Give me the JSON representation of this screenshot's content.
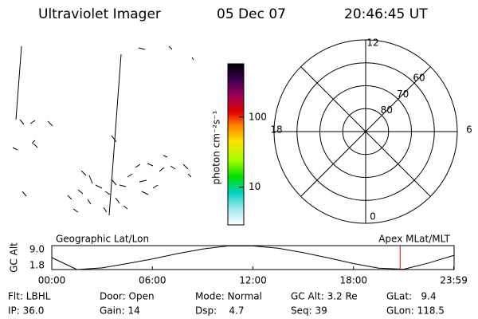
{
  "header": {
    "title": "Ultraviolet Imager",
    "date": "05 Dec 07",
    "time": "20:46:45 UT"
  },
  "colorbar": {
    "label": "photon cm⁻²s⁻¹",
    "log": true,
    "lim": [
      2.9,
      575
    ],
    "ticks": [
      10,
      100
    ]
  },
  "polar": {
    "mlt_ticks": [
      12,
      18,
      6,
      0
    ],
    "lat_lim": [
      50,
      90
    ],
    "lat_rings": [
      60,
      70,
      80
    ]
  },
  "chart_data": {
    "type": "line",
    "ylabel": "GC Alt",
    "left_label": "Geographic Lat/Lon",
    "right_label": "Apex MLat/MLT",
    "x": [
      0,
      1.5,
      3,
      4.5,
      6,
      7.5,
      9,
      10.5,
      12,
      13.5,
      15,
      16.5,
      18,
      19.5,
      21,
      22.5,
      24
    ],
    "values": [
      5.4,
      1.8,
      2.3,
      3.6,
      5.0,
      6.6,
      8.0,
      8.9,
      8.9,
      8.2,
      6.9,
      5.3,
      3.6,
      2.2,
      1.9,
      3.8,
      6.1
    ],
    "color": "#000000",
    "xlim": [
      0,
      24
    ],
    "xticks": [
      {
        "value": 0,
        "label": "00:00"
      },
      {
        "value": 6,
        "label": "06:00"
      },
      {
        "value": 12,
        "label": "12:00"
      },
      {
        "value": 18,
        "label": "18:00"
      },
      {
        "value": 23.98,
        "label": "23:59"
      }
    ],
    "ylim": [
      1.8,
      9
    ],
    "yticks": [
      {
        "value": 9,
        "label": "9.0"
      },
      1.8
    ],
    "marker_x": 20.78,
    "marker_color": "#cc0000"
  },
  "info": {
    "rows": [
      [
        "Flt: LBHL",
        "Door: Open",
        "Mode: Normal",
        "GC Alt: 3.2 Re",
        "GLat:   9.4"
      ],
      [
        "IP: 36.0",
        "Gain: 14",
        "Dsp:    4.7",
        "Seq: 39",
        "GLon: 118.5"
      ]
    ]
  }
}
